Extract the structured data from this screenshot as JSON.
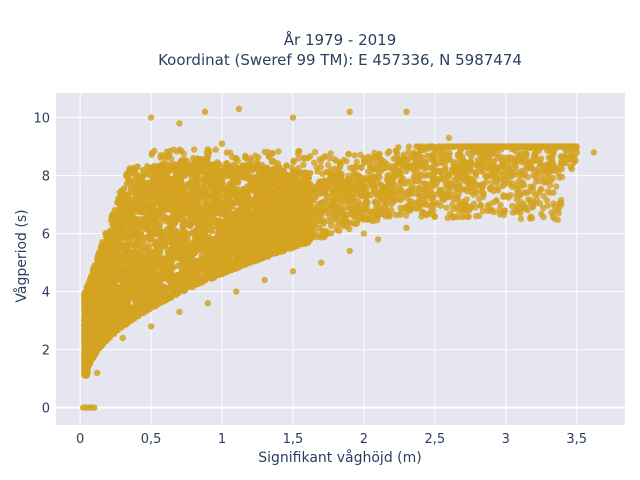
{
  "chart_data": {
    "type": "scatter",
    "title_line1": "År 1979 - 2019",
    "title_line2": "Koordinat (Sweref 99 TM): E 457336, N 5987474",
    "xlabel": "Signifikant våghöjd (m)",
    "ylabel": "Vågperiod (s)",
    "xlim": [
      -0.17,
      3.84
    ],
    "ylim": [
      -0.6,
      10.85
    ],
    "x_ticks": [
      0,
      0.5,
      1,
      1.5,
      2,
      2.5,
      3,
      3.5
    ],
    "x_tick_labels": [
      "0",
      "0,5",
      "1",
      "1,5",
      "2",
      "2,5",
      "3",
      "3,5"
    ],
    "y_ticks": [
      0,
      2,
      4,
      6,
      8,
      10
    ],
    "y_tick_labels": [
      "0",
      "2",
      "4",
      "6",
      "8",
      "10"
    ],
    "grid": true,
    "marker_color": "#d4a321",
    "plot_background": "#e5e6ef",
    "series": [
      {
        "values_note": "dense cloud of hourly observations",
        "points": [
          [
            0.02,
            0.0
          ],
          [
            0.04,
            0.0
          ],
          [
            0.06,
            0.0
          ],
          [
            0.08,
            0.0
          ],
          [
            0.1,
            0.0
          ],
          [
            0.05,
            1.7
          ],
          [
            0.1,
            2.1
          ],
          [
            0.12,
            1.2
          ],
          [
            0.15,
            2.6
          ],
          [
            0.2,
            3.2
          ],
          [
            0.25,
            3.7
          ],
          [
            0.3,
            4.4
          ],
          [
            0.35,
            5.1
          ],
          [
            0.4,
            5.8
          ],
          [
            0.5,
            6.6
          ],
          [
            0.6,
            7.6
          ],
          [
            0.75,
            8.4
          ],
          [
            0.9,
            8.9
          ],
          [
            1.0,
            9.1
          ],
          [
            1.1,
            8.6
          ],
          [
            0.5,
            10.0
          ],
          [
            0.7,
            9.8
          ],
          [
            0.88,
            10.2
          ],
          [
            1.12,
            10.3
          ],
          [
            1.5,
            10.0
          ],
          [
            1.9,
            10.2
          ],
          [
            2.3,
            10.2
          ],
          [
            0.3,
            2.4
          ],
          [
            0.5,
            2.8
          ],
          [
            0.7,
            3.3
          ],
          [
            0.9,
            3.6
          ],
          [
            1.1,
            4.0
          ],
          [
            1.3,
            4.4
          ],
          [
            1.5,
            4.7
          ],
          [
            1.7,
            5.0
          ],
          [
            1.9,
            5.4
          ],
          [
            2.1,
            5.8
          ],
          [
            2.3,
            6.2
          ],
          [
            2.5,
            6.6
          ],
          [
            2.7,
            7.1
          ],
          [
            2.9,
            7.6
          ],
          [
            3.1,
            8.0
          ],
          [
            3.3,
            8.4
          ],
          [
            3.5,
            8.8
          ],
          [
            3.62,
            8.8
          ],
          [
            2.0,
            8.6
          ],
          [
            2.3,
            8.3
          ],
          [
            2.6,
            8.0
          ],
          [
            2.8,
            8.9
          ],
          [
            3.0,
            9.0
          ],
          [
            2.6,
            9.3
          ],
          [
            3.2,
            8.6
          ],
          [
            2.0,
            6.0
          ],
          [
            1.5,
            5.6
          ],
          [
            1.2,
            5.2
          ]
        ]
      }
    ]
  }
}
